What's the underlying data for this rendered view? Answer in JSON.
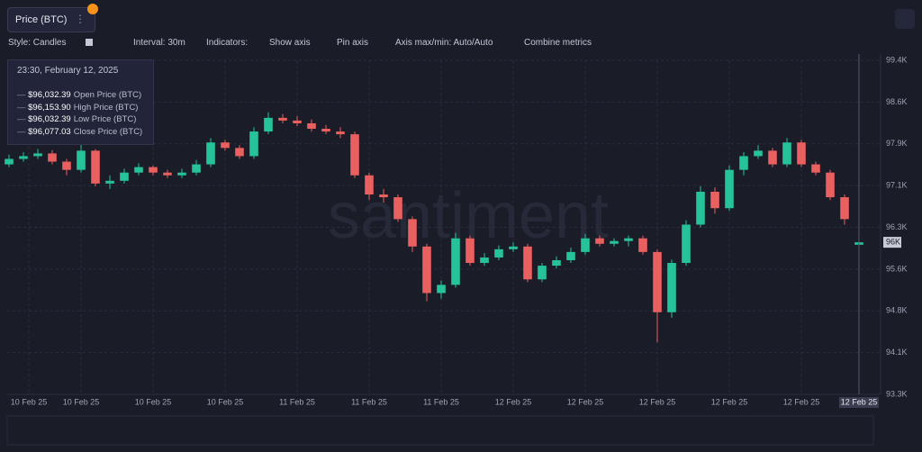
{
  "toolbar": {
    "metric": "Price (BTC)",
    "style": "Style: Candles",
    "interval": "Interval: 30m",
    "indicators": "Indicators:",
    "show_axis": "Show axis",
    "pin_axis": "Pin axis",
    "axis_range": "Axis max/min: Auto/Auto",
    "combine": "Combine metrics"
  },
  "tooltip": {
    "time": "23:30, February 12, 2025",
    "rows": [
      {
        "value": "$96,032.39",
        "name": "Open Price (BTC)"
      },
      {
        "value": "$96,153.90",
        "name": "High Price (BTC)"
      },
      {
        "value": "$96,032.39",
        "name": "Low Price (BTC)"
      },
      {
        "value": "$96,077.03",
        "name": "Close Price (BTC)"
      }
    ]
  },
  "watermark": "santiment",
  "chart_data": {
    "type": "candlestick",
    "up_color": "#26c39a",
    "down_color": "#e8605f",
    "grid": true,
    "open": [
      97500,
      97600,
      97650,
      97700,
      97550,
      97400,
      97750,
      97150,
      97200,
      97350,
      97450,
      97350,
      97300,
      97350,
      97500,
      97900,
      97800,
      97650,
      98100,
      98350,
      98300,
      98250,
      98150,
      98100,
      98050,
      97300,
      96950,
      96900,
      96500,
      96000,
      95150,
      95300,
      96150,
      95700,
      95800,
      95950,
      96000,
      95400,
      95650,
      95750,
      95900,
      96150,
      96050,
      96100,
      96150,
      95900,
      94800,
      95700,
      96400,
      97000,
      96700,
      97400,
      97650,
      97750,
      97500,
      97900,
      97500,
      97350,
      96900,
      96032.39
    ],
    "high": [
      97680,
      97720,
      97780,
      97760,
      97600,
      97950,
      97780,
      97300,
      97420,
      97520,
      97480,
      97400,
      97420,
      97580,
      97980,
      97950,
      97850,
      98180,
      98450,
      98420,
      98380,
      98320,
      98220,
      98180,
      98100,
      97350,
      97050,
      96950,
      96550,
      96050,
      95380,
      96250,
      96200,
      95880,
      96020,
      96080,
      96050,
      95700,
      95820,
      95980,
      96230,
      96200,
      96150,
      96200,
      96200,
      95950,
      95760,
      96480,
      97100,
      97080,
      97480,
      97720,
      97850,
      97800,
      97980,
      97950,
      97550,
      97400,
      96950,
      96153.9
    ],
    "low": [
      97450,
      97550,
      97600,
      97500,
      97300,
      97350,
      97100,
      97050,
      97150,
      97300,
      97300,
      97250,
      97250,
      97300,
      97450,
      97750,
      97600,
      97600,
      98050,
      98250,
      98200,
      98100,
      98050,
      97980,
      97250,
      96850,
      96800,
      96450,
      95900,
      95000,
      95050,
      95250,
      95650,
      95650,
      95750,
      95900,
      95350,
      95350,
      95600,
      95700,
      95850,
      96000,
      96000,
      96000,
      95850,
      94250,
      94700,
      95650,
      96350,
      96600,
      96650,
      97300,
      97600,
      97450,
      97450,
      97450,
      97300,
      96850,
      96400,
      96032.39
    ],
    "close": [
      97600,
      97650,
      97700,
      97550,
      97400,
      97750,
      97150,
      97200,
      97350,
      97450,
      97350,
      97300,
      97350,
      97500,
      97900,
      97800,
      97650,
      98100,
      98350,
      98300,
      98250,
      98150,
      98100,
      98050,
      97300,
      96950,
      96900,
      96500,
      96000,
      95150,
      95300,
      96150,
      95700,
      95800,
      95950,
      96000,
      95400,
      95650,
      95750,
      95900,
      96150,
      96050,
      96100,
      96150,
      95900,
      94800,
      95700,
      96400,
      97000,
      96700,
      97400,
      97650,
      97750,
      97500,
      97900,
      97500,
      97350,
      96900,
      96500,
      96077.03
    ],
    "xlim": [
      -0.625,
      59.875
    ],
    "xticks": [
      {
        "value": 1.375,
        "label": "10 Feb 25"
      },
      {
        "value": 5,
        "label": "10 Feb 25"
      },
      {
        "value": 10,
        "label": "10 Feb 25"
      },
      {
        "value": 15,
        "label": "10 Feb 25"
      },
      {
        "value": 20,
        "label": "11 Feb 25"
      },
      {
        "value": 25,
        "label": "11 Feb 25"
      },
      {
        "value": 30,
        "label": "11 Feb 25"
      },
      {
        "value": 35,
        "label": "12 Feb 25"
      },
      {
        "value": 40,
        "label": "12 Feb 25"
      },
      {
        "value": 45,
        "label": "12 Feb 25"
      },
      {
        "value": 50,
        "label": "12 Feb 25"
      },
      {
        "value": 55,
        "label": "12 Feb 25"
      }
    ],
    "crosshair": {
      "value": 59,
      "label": "12 Feb 25"
    },
    "last_label": "96K",
    "ylim": [
      93300,
      99400
    ],
    "yticks": [
      {
        "value": 93300,
        "label": "93.3K"
      },
      {
        "value": 94062.5,
        "label": "94.1K"
      },
      {
        "value": 94825,
        "label": "94.8K"
      },
      {
        "value": 95587.5,
        "label": "95.6K"
      },
      {
        "value": 96350,
        "label": "96.3K"
      },
      {
        "value": 97112.5,
        "label": "97.1K"
      },
      {
        "value": 97875,
        "label": "97.9K"
      },
      {
        "value": 98637.5,
        "label": "98.6K"
      },
      {
        "value": 99400,
        "label": "99.4K"
      }
    ]
  }
}
